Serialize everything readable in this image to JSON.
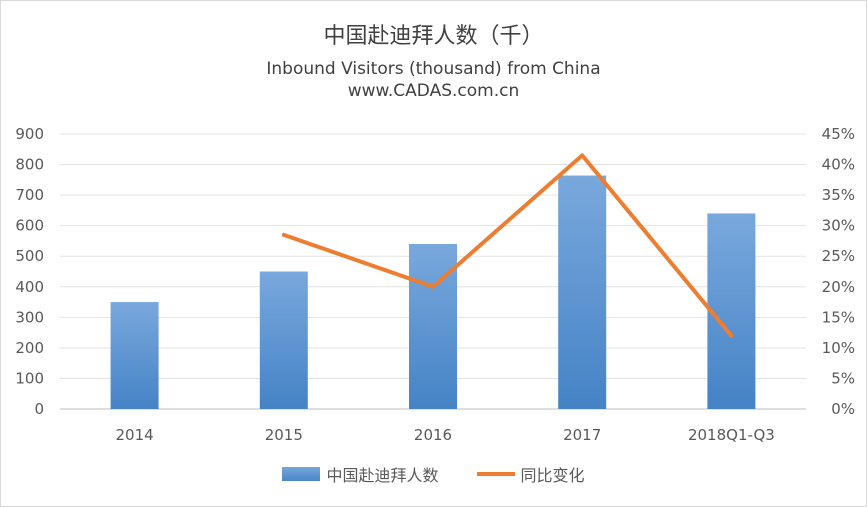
{
  "chart_data": {
    "type": "bar",
    "title": "中国赴迪拜人数（千）",
    "subtitle": "Inbound Visitors (thousand) from China",
    "source": "www.CADAS.com.cn",
    "categories": [
      "2014",
      "2015",
      "2016",
      "2017",
      "2018Q1-Q3"
    ],
    "series": [
      {
        "name": "中国赴迪拜人数",
        "kind": "bar",
        "axis": "left",
        "color": "#5b9bd5",
        "values": [
          350,
          450,
          540,
          764,
          640
        ]
      },
      {
        "name": "同比变化",
        "kind": "line",
        "axis": "right",
        "color": "#ed7d31",
        "values": [
          null,
          28.5,
          20.0,
          41.5,
          12.0
        ]
      }
    ],
    "ylim": [
      0,
      900
    ],
    "y_ticks": [
      "0",
      "100",
      "200",
      "300",
      "400",
      "500",
      "600",
      "700",
      "800",
      "900"
    ],
    "y2lim": [
      0,
      45
    ],
    "y2_ticks": [
      "0%",
      "5%",
      "10%",
      "15%",
      "20%",
      "25%",
      "30%",
      "35%",
      "40%",
      "45%"
    ],
    "grid": true,
    "legend_position": "bottom"
  }
}
